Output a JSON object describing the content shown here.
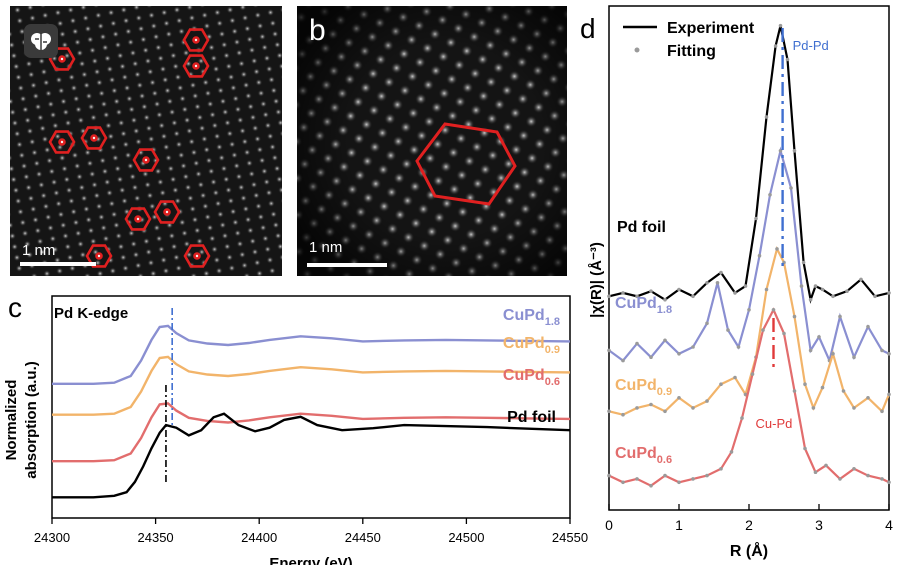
{
  "panels": {
    "a": {
      "scale_label": "1 nm"
    },
    "b": {
      "label": "b",
      "scale_label": "1 nm"
    },
    "c": {
      "label": "c"
    },
    "d": {
      "label": "d"
    }
  },
  "colors": {
    "cupd18": "#8a8fd1",
    "cupd09": "#f2b46a",
    "cupd06": "#e26d6d",
    "pdfoil": "#000000",
    "marker": "#e02020",
    "pdpd_line": "#3f6fd0",
    "cupd_line": "#e03a3a"
  },
  "chart_data": [
    {
      "type": "line",
      "panel": "c",
      "title": "Pd K-edge",
      "xlabel": "Energy (eV)",
      "ylabel": "Normalized absorption (a.u.)",
      "xlim": [
        24300,
        24550
      ],
      "xticks": [
        24300,
        24350,
        24400,
        24450,
        24500,
        24550
      ],
      "grid": false,
      "series": [
        {
          "name": "CuPd",
          "sub": "1.8",
          "color": "#8a8fd1",
          "x": [
            24300,
            24320,
            24330,
            24338,
            24343,
            24348,
            24352,
            24356,
            24360,
            24366,
            24375,
            24385,
            24395,
            24405,
            24420,
            24435,
            24450,
            24470,
            24490,
            24510,
            24530,
            24550
          ],
          "y": [
            3.2,
            3.2,
            3.22,
            3.35,
            3.65,
            4.05,
            4.3,
            4.32,
            4.18,
            4.04,
            3.98,
            3.95,
            3.99,
            4.05,
            4.12,
            4.08,
            4.02,
            4.04,
            4.05,
            4.04,
            4.03,
            4.02
          ]
        },
        {
          "name": "CuPd",
          "sub": "0.9",
          "color": "#f2b46a",
          "x": [
            24300,
            24320,
            24330,
            24338,
            24343,
            24348,
            24352,
            24356,
            24360,
            24366,
            24375,
            24385,
            24395,
            24405,
            24420,
            24435,
            24450,
            24470,
            24490,
            24510,
            24530,
            24550
          ],
          "y": [
            2.6,
            2.6,
            2.62,
            2.75,
            3.05,
            3.45,
            3.7,
            3.72,
            3.58,
            3.44,
            3.38,
            3.35,
            3.39,
            3.45,
            3.52,
            3.48,
            3.42,
            3.44,
            3.45,
            3.44,
            3.43,
            3.42
          ]
        },
        {
          "name": "CuPd",
          "sub": "0.6",
          "color": "#e26d6d",
          "x": [
            24300,
            24320,
            24330,
            24338,
            24343,
            24348,
            24352,
            24356,
            24360,
            24366,
            24375,
            24385,
            24395,
            24405,
            24420,
            24435,
            24450,
            24470,
            24490,
            24510,
            24530,
            24550
          ],
          "y": [
            1.7,
            1.7,
            1.72,
            1.85,
            2.15,
            2.55,
            2.8,
            2.82,
            2.68,
            2.54,
            2.48,
            2.45,
            2.49,
            2.55,
            2.62,
            2.58,
            2.52,
            2.54,
            2.55,
            2.54,
            2.53,
            2.52
          ]
        },
        {
          "name": "Pd foil",
          "sub": "",
          "color": "#000000",
          "x": [
            24300,
            24320,
            24330,
            24336,
            24340,
            24344,
            24348,
            24352,
            24355,
            24360,
            24366,
            24372,
            24378,
            24383,
            24390,
            24398,
            24405,
            24412,
            24420,
            24428,
            24440,
            24455,
            24470,
            24490,
            24510,
            24530,
            24550
          ],
          "y": [
            1.0,
            1.0,
            1.03,
            1.1,
            1.3,
            1.6,
            1.95,
            2.25,
            2.4,
            2.35,
            2.2,
            2.3,
            2.55,
            2.62,
            2.4,
            2.28,
            2.35,
            2.5,
            2.56,
            2.4,
            2.3,
            2.34,
            2.4,
            2.38,
            2.36,
            2.33,
            2.3
          ]
        }
      ],
      "annotations": {
        "blue_line_x": 24358,
        "black_line_x": 24355
      }
    },
    {
      "type": "line",
      "panel": "d",
      "xlabel": "R (Å)",
      "ylabel": "|χ(R)| (Å⁻³)",
      "xlim": [
        0,
        4
      ],
      "xticks": [
        0,
        1,
        2,
        3,
        4
      ],
      "grid": false,
      "legend": {
        "placement": "top-left",
        "entries": [
          "Experiment",
          "Fitting"
        ]
      },
      "series": [
        {
          "name": "Pd foil",
          "sub": "",
          "color": "#000000",
          "x": [
            0,
            0.2,
            0.4,
            0.6,
            0.8,
            1.0,
            1.2,
            1.4,
            1.6,
            1.8,
            1.95,
            2.1,
            2.25,
            2.38,
            2.45,
            2.55,
            2.65,
            2.78,
            2.88,
            2.95,
            3.05,
            3.2,
            3.4,
            3.6,
            3.8,
            4.0
          ],
          "y": [
            6.2,
            6.3,
            6.2,
            6.35,
            6.1,
            6.4,
            6.2,
            6.6,
            6.9,
            6.3,
            6.5,
            8.5,
            11.5,
            13.6,
            14.2,
            13.2,
            10.5,
            7.2,
            6.1,
            6.5,
            6.4,
            6.2,
            6.35,
            6.7,
            6.2,
            6.3
          ]
        },
        {
          "name": "CuPd",
          "sub": "1.8",
          "color": "#8a8fd1",
          "x": [
            0,
            0.2,
            0.4,
            0.6,
            0.8,
            1.0,
            1.2,
            1.4,
            1.55,
            1.7,
            1.85,
            2.0,
            2.15,
            2.3,
            2.45,
            2.6,
            2.75,
            2.88,
            3.0,
            3.15,
            3.3,
            3.5,
            3.7,
            3.9,
            4.0
          ],
          "y": [
            4.6,
            4.3,
            4.8,
            4.4,
            4.9,
            4.5,
            4.7,
            5.4,
            6.6,
            5.2,
            4.7,
            5.8,
            7.4,
            9.2,
            10.5,
            9.4,
            6.5,
            4.6,
            5.0,
            4.3,
            5.6,
            4.4,
            5.3,
            4.6,
            4.5
          ]
        },
        {
          "name": "CuPd",
          "sub": "0.9",
          "color": "#f2b46a",
          "x": [
            0,
            0.2,
            0.4,
            0.6,
            0.8,
            1.0,
            1.2,
            1.4,
            1.6,
            1.8,
            1.95,
            2.1,
            2.25,
            2.4,
            2.5,
            2.65,
            2.8,
            2.92,
            3.05,
            3.2,
            3.35,
            3.5,
            3.7,
            3.9,
            4.0
          ],
          "y": [
            2.8,
            2.7,
            2.9,
            3.0,
            2.8,
            3.2,
            2.9,
            3.1,
            3.6,
            3.8,
            3.3,
            4.4,
            6.4,
            7.6,
            7.2,
            5.6,
            3.6,
            2.9,
            3.5,
            4.5,
            3.4,
            2.9,
            3.2,
            2.8,
            3.3
          ]
        },
        {
          "name": "CuPd",
          "sub": "0.6",
          "color": "#e26d6d",
          "x": [
            0,
            0.2,
            0.4,
            0.6,
            0.8,
            1.0,
            1.2,
            1.4,
            1.6,
            1.75,
            1.9,
            2.05,
            2.2,
            2.35,
            2.5,
            2.65,
            2.8,
            2.95,
            3.1,
            3.3,
            3.5,
            3.7,
            3.9,
            4.0
          ],
          "y": [
            0.9,
            0.7,
            0.8,
            0.6,
            0.9,
            0.7,
            0.8,
            0.9,
            1.1,
            1.6,
            2.6,
            3.9,
            5.2,
            5.8,
            5.1,
            3.4,
            1.7,
            1.0,
            1.2,
            0.8,
            1.1,
            0.9,
            0.8,
            0.7
          ]
        }
      ],
      "annotations": [
        {
          "text": "Pd-Pd",
          "color": "#3f6fd0",
          "x": 2.48
        },
        {
          "text": "Cu-Pd",
          "color": "#e03a3a",
          "x": 2.35
        }
      ]
    }
  ]
}
